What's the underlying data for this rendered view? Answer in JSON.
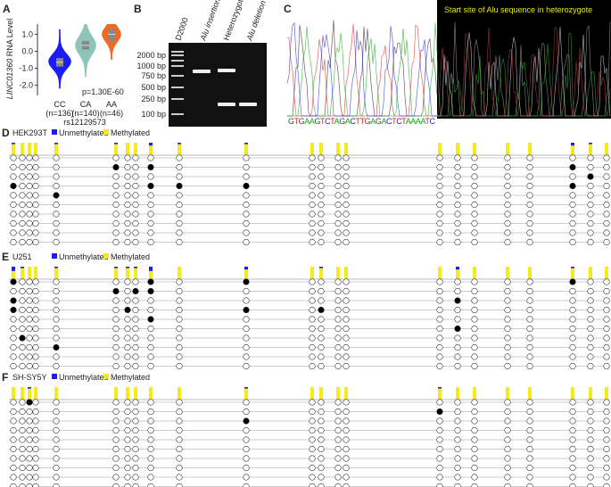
{
  "figure": {
    "panel_a": {
      "label": "A",
      "y_label_gene": "LINC01360",
      "y_label_rest": "RNA Level",
      "ylim": [
        -2.6,
        1.6
      ],
      "yticks": [
        {
          "value": 1,
          "label": "1.0"
        },
        {
          "value": 0,
          "label": "0.0"
        },
        {
          "value": -1,
          "label": "-1.0"
        },
        {
          "value": -2,
          "label": "-2.0"
        }
      ],
      "groups": [
        {
          "name": "CC",
          "n": "(n=136)",
          "color": "#1c1cf5"
        },
        {
          "name": "CA",
          "n": "(n=140)",
          "color": "#8fc4bd"
        },
        {
          "name": "AA",
          "n": "(n=46)",
          "color": "#f26a22"
        }
      ],
      "snp": "rs12129573",
      "p_value": "p=1.30E-60"
    },
    "panel_b": {
      "label": "B",
      "lanes": [
        "D2000",
        "Alu insertion homozygote",
        "Heterozygote",
        "Alu deletion homozygote"
      ],
      "ladder": [
        "2000 bp",
        "1000 bp",
        "750 bp",
        "500 bp",
        "250 bp",
        "100 bp"
      ]
    },
    "panel_c": {
      "label": "C",
      "annotation": "Start site of Alu sequence in heterozygote",
      "sequence": "GTGAAGTCTAGACTTGAGACTCTAAAATC"
    },
    "legend": {
      "unmethylated": "Unmethylated",
      "methylated": "Methylated"
    },
    "methylation_panels": [
      {
        "label": "D",
        "cell_line": "HEK293T",
        "methylated_sites": [
          [],
          [
            5,
            8,
            20
          ],
          [
            21
          ],
          [
            0,
            8,
            9,
            10,
            20
          ],
          [
            4
          ],
          [],
          [],
          [],
          [],
          []
        ]
      },
      {
        "label": "E",
        "cell_line": "U251",
        "methylated_sites": [
          [
            0,
            8,
            10,
            20
          ],
          [
            5,
            7,
            8
          ],
          [
            0,
            16
          ],
          [
            0,
            6,
            10,
            12
          ],
          [
            8
          ],
          [
            16
          ],
          [
            1
          ],
          [
            4
          ],
          [],
          []
        ]
      },
      {
        "label": "F",
        "cell_line": "SH-SY5Y",
        "methylated_sites": [
          [
            2
          ],
          [
            15
          ],
          [
            10
          ],
          [],
          [],
          [],
          [],
          [],
          [],
          []
        ]
      }
    ]
  }
}
